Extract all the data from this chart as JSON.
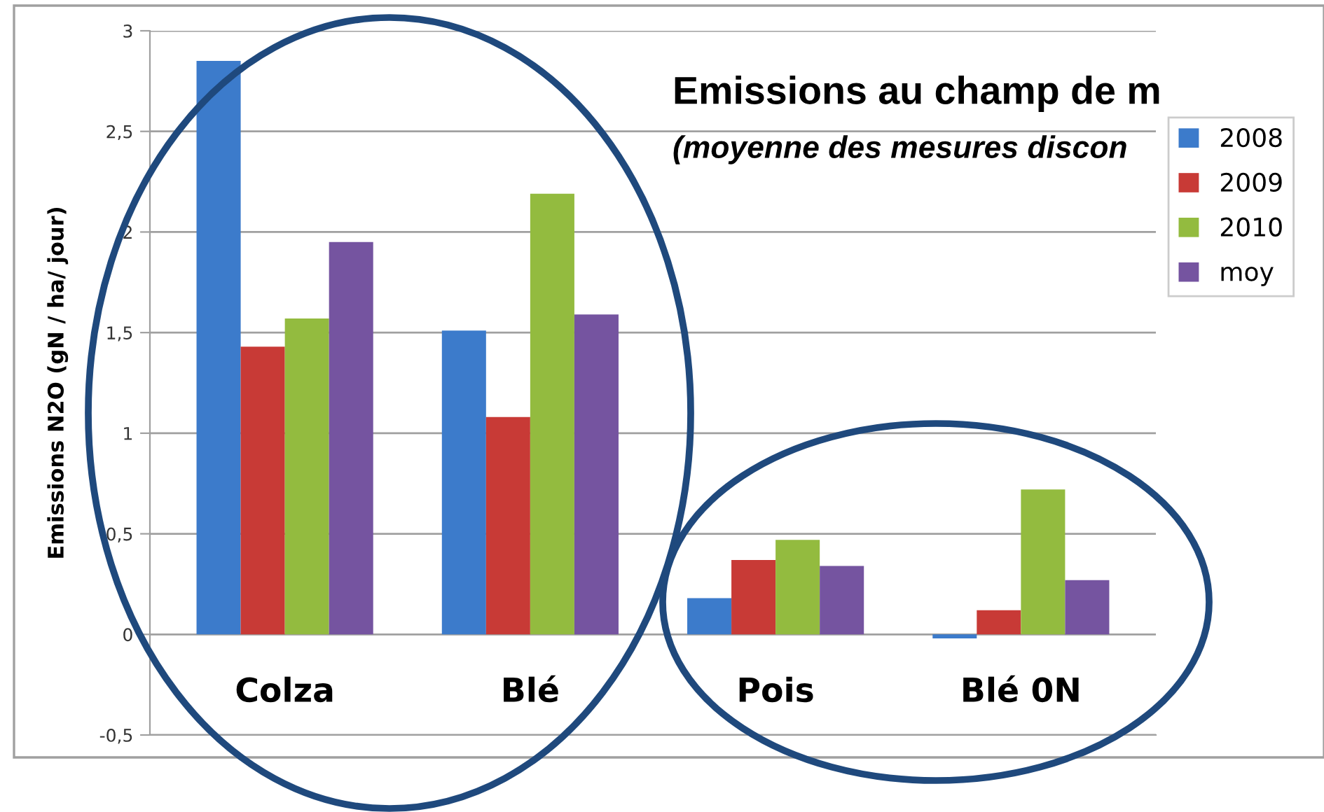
{
  "chart_data": {
    "type": "bar",
    "title": "Emissions au champ de m",
    "subtitle": "(moyenne des mesures discon",
    "ylabel": "Emissions N2O (gN / ha/ jour)",
    "categories": [
      "Colza",
      "Blé",
      "Pois",
      "Blé 0N"
    ],
    "series": [
      {
        "name": "2008",
        "color": "#3c7bcb",
        "values": [
          2.85,
          1.51,
          0.18,
          -0.02
        ]
      },
      {
        "name": "2009",
        "color": "#c83a36",
        "values": [
          1.43,
          1.08,
          0.37,
          0.12
        ]
      },
      {
        "name": "2010",
        "color": "#93bb3f",
        "values": [
          1.57,
          2.19,
          0.47,
          0.72
        ]
      },
      {
        "name": "moy",
        "color": "#7554a0",
        "values": [
          1.95,
          1.59,
          0.34,
          0.27
        ]
      }
    ],
    "ylim": [
      -0.5,
      3
    ],
    "yticks": [
      {
        "value": -0.5,
        "label": "-0,5"
      },
      0,
      {
        "value": 0.5,
        "label": "0,5"
      },
      1,
      {
        "value": 1.5,
        "label": "1,5"
      },
      2,
      {
        "value": 2.5,
        "label": "2,5"
      },
      3
    ],
    "grid": "y",
    "legend": "right"
  }
}
